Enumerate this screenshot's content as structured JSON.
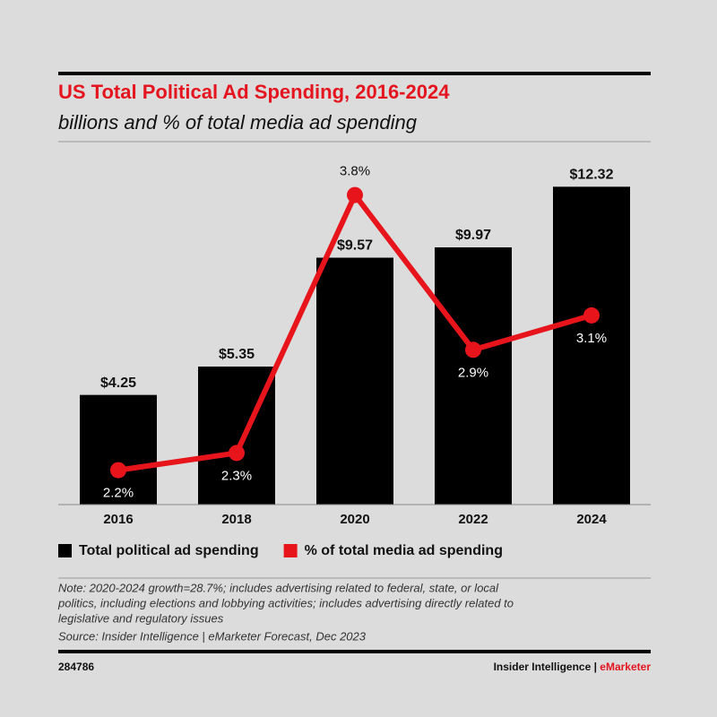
{
  "chart_data": {
    "type": "bar-line",
    "title": "US Total Political Ad Spending, 2016-2024",
    "subtitle": "billions and % of total media ad spending",
    "categories": [
      "2016",
      "2018",
      "2020",
      "2022",
      "2024"
    ],
    "series": [
      {
        "name": "Total political ad spending",
        "color": "#000000",
        "type": "bar",
        "values": [
          4.25,
          5.35,
          9.57,
          9.97,
          12.32
        ],
        "value_labels": [
          "$4.25",
          "$5.35",
          "$9.57",
          "$9.97",
          "$12.32"
        ]
      },
      {
        "name": "% of total media ad spending",
        "color": "#e8141c",
        "type": "line",
        "axis": "y2",
        "values": [
          2.2,
          2.3,
          3.8,
          2.9,
          3.1
        ],
        "value_labels": [
          "2.2%",
          "2.3%",
          "3.8%",
          "2.9%",
          "3.1%"
        ]
      }
    ],
    "ylim": [
      0,
      14
    ],
    "y2lim": [
      2.0,
      4.1
    ]
  },
  "note": [
    "Note: 2020-2024 growth=28.7%; includes advertising related to federal, state, or local",
    "politics, including elections and lobbying activities; includes advertising directly related to",
    "legislative and regulatory issues"
  ],
  "source": "Source: Insider Intelligence | eMarketer Forecast, Dec 2023",
  "footer": {
    "id": "284786",
    "brand": "Insider Intelligence | ",
    "brand_highlight": "eMarketer"
  }
}
